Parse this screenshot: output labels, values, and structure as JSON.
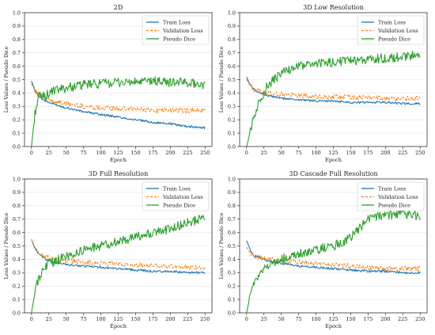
{
  "figure": {
    "legend_labels": [
      "Train Loss",
      "Validation Loss",
      "Pseudo Dice"
    ],
    "colors": {
      "train": "#1f77b4",
      "validation": "#ff7f0e",
      "dice": "#2ca02c",
      "grid": "#e3e3e3",
      "axis": "#333333"
    }
  },
  "chart_data": [
    {
      "type": "line",
      "title": "2D",
      "xlabel": "Epoch",
      "ylabel": "Loss Values / Pseudo Dice",
      "xlim": [
        -10,
        260
      ],
      "ylim": [
        0,
        1.0
      ],
      "xticks": [
        0,
        25,
        50,
        75,
        100,
        125,
        150,
        175,
        200,
        225,
        250
      ],
      "yticks": [
        0.0,
        0.1,
        0.2,
        0.3,
        0.4,
        0.5,
        0.6,
        0.7,
        0.8,
        0.9,
        1.0
      ],
      "grid": true,
      "legend_position": "top-right",
      "series": [
        {
          "name": "Train Loss",
          "style": "solid",
          "x": [
            0,
            5,
            10,
            20,
            30,
            50,
            75,
            100,
            125,
            150,
            175,
            200,
            225,
            250
          ],
          "values": [
            0.49,
            0.42,
            0.38,
            0.34,
            0.32,
            0.29,
            0.26,
            0.24,
            0.22,
            0.2,
            0.18,
            0.17,
            0.15,
            0.14
          ]
        },
        {
          "name": "Validation Loss",
          "style": "dashed",
          "x": [
            0,
            5,
            10,
            20,
            30,
            50,
            75,
            100,
            125,
            150,
            175,
            200,
            225,
            250
          ],
          "values": [
            0.47,
            0.42,
            0.39,
            0.36,
            0.34,
            0.32,
            0.3,
            0.29,
            0.28,
            0.28,
            0.27,
            0.27,
            0.27,
            0.27
          ]
        },
        {
          "name": "Pseudo Dice",
          "style": "solid",
          "x": [
            0,
            5,
            10,
            20,
            30,
            50,
            75,
            100,
            125,
            150,
            175,
            200,
            225,
            250
          ],
          "values": [
            0.0,
            0.25,
            0.37,
            0.38,
            0.41,
            0.44,
            0.46,
            0.47,
            0.48,
            0.48,
            0.49,
            0.48,
            0.48,
            0.46
          ]
        }
      ]
    },
    {
      "type": "line",
      "title": "3D Low Resolution",
      "xlabel": "Epoch",
      "ylabel": "Loss Values / Pseudo Dice",
      "xlim": [
        -10,
        260
      ],
      "ylim": [
        0,
        1.0
      ],
      "xticks": [
        0,
        25,
        50,
        75,
        100,
        125,
        150,
        175,
        200,
        225,
        250
      ],
      "yticks": [
        0.0,
        0.1,
        0.2,
        0.3,
        0.4,
        0.5,
        0.6,
        0.7,
        0.8,
        0.9,
        1.0
      ],
      "grid": true,
      "legend_position": "top-right",
      "series": [
        {
          "name": "Train Loss",
          "style": "solid",
          "x": [
            0,
            5,
            10,
            20,
            30,
            50,
            75,
            100,
            125,
            150,
            175,
            200,
            225,
            250
          ],
          "values": [
            0.52,
            0.46,
            0.43,
            0.4,
            0.38,
            0.36,
            0.35,
            0.34,
            0.34,
            0.33,
            0.33,
            0.33,
            0.32,
            0.32
          ]
        },
        {
          "name": "Validation Loss",
          "style": "dashed",
          "x": [
            0,
            5,
            10,
            20,
            30,
            50,
            75,
            100,
            125,
            150,
            175,
            200,
            225,
            250
          ],
          "values": [
            0.5,
            0.46,
            0.43,
            0.41,
            0.4,
            0.39,
            0.38,
            0.37,
            0.37,
            0.37,
            0.37,
            0.36,
            0.36,
            0.36
          ]
        },
        {
          "name": "Pseudo Dice",
          "style": "solid",
          "x": [
            0,
            5,
            10,
            20,
            30,
            50,
            75,
            100,
            125,
            150,
            175,
            200,
            225,
            250
          ],
          "values": [
            0.0,
            0.1,
            0.22,
            0.36,
            0.45,
            0.55,
            0.6,
            0.62,
            0.63,
            0.64,
            0.65,
            0.66,
            0.67,
            0.69
          ]
        }
      ]
    },
    {
      "type": "line",
      "title": "3D Full Resolution",
      "xlabel": "Epoch",
      "ylabel": "Loss Values / Pseudo Dice",
      "xlim": [
        -10,
        260
      ],
      "ylim": [
        0,
        1.0
      ],
      "xticks": [
        0,
        25,
        50,
        75,
        100,
        125,
        150,
        175,
        200,
        225,
        250
      ],
      "yticks": [
        0.0,
        0.1,
        0.2,
        0.3,
        0.4,
        0.5,
        0.6,
        0.7,
        0.8,
        0.9,
        1.0
      ],
      "grid": true,
      "legend_position": "top-right",
      "series": [
        {
          "name": "Train Loss",
          "style": "solid",
          "x": [
            0,
            5,
            10,
            20,
            30,
            50,
            75,
            100,
            125,
            150,
            175,
            200,
            225,
            250
          ],
          "values": [
            0.55,
            0.48,
            0.44,
            0.4,
            0.38,
            0.36,
            0.35,
            0.34,
            0.33,
            0.32,
            0.31,
            0.31,
            0.3,
            0.3
          ]
        },
        {
          "name": "Validation Loss",
          "style": "dashed",
          "x": [
            0,
            5,
            10,
            20,
            30,
            50,
            75,
            100,
            125,
            150,
            175,
            200,
            225,
            250
          ],
          "values": [
            0.55,
            0.49,
            0.45,
            0.42,
            0.4,
            0.39,
            0.38,
            0.37,
            0.36,
            0.36,
            0.35,
            0.35,
            0.34,
            0.34
          ]
        },
        {
          "name": "Pseudo Dice",
          "style": "solid",
          "x": [
            0,
            5,
            10,
            20,
            30,
            50,
            75,
            100,
            125,
            150,
            175,
            200,
            225,
            250
          ],
          "values": [
            0.0,
            0.15,
            0.25,
            0.35,
            0.38,
            0.42,
            0.47,
            0.5,
            0.53,
            0.57,
            0.6,
            0.63,
            0.67,
            0.71
          ]
        }
      ]
    },
    {
      "type": "line",
      "title": "3D Cascade Full Resolution",
      "xlabel": "Epoch",
      "ylabel": "Loss Values / Pseudo Dice",
      "xlim": [
        -10,
        260
      ],
      "ylim": [
        0,
        1.0
      ],
      "xticks": [
        0,
        25,
        50,
        75,
        100,
        125,
        150,
        175,
        200,
        225,
        250
      ],
      "yticks": [
        0.0,
        0.1,
        0.2,
        0.3,
        0.4,
        0.5,
        0.6,
        0.7,
        0.8,
        0.9,
        1.0
      ],
      "grid": true,
      "legend_position": "top-right",
      "series": [
        {
          "name": "Train Loss",
          "style": "solid",
          "x": [
            0,
            5,
            10,
            20,
            30,
            50,
            75,
            100,
            125,
            150,
            175,
            200,
            225,
            250
          ],
          "values": [
            0.54,
            0.47,
            0.43,
            0.41,
            0.39,
            0.37,
            0.35,
            0.34,
            0.33,
            0.32,
            0.31,
            0.31,
            0.3,
            0.3
          ]
        },
        {
          "name": "Validation Loss",
          "style": "dashed",
          "x": [
            0,
            5,
            10,
            20,
            30,
            50,
            75,
            100,
            125,
            150,
            175,
            200,
            225,
            250
          ],
          "values": [
            0.49,
            0.45,
            0.43,
            0.41,
            0.4,
            0.39,
            0.38,
            0.37,
            0.36,
            0.35,
            0.34,
            0.33,
            0.33,
            0.33
          ]
        },
        {
          "name": "Pseudo Dice",
          "style": "solid",
          "x": [
            0,
            5,
            10,
            20,
            30,
            50,
            75,
            100,
            125,
            150,
            175,
            200,
            225,
            250
          ],
          "values": [
            0.0,
            0.12,
            0.22,
            0.3,
            0.35,
            0.4,
            0.44,
            0.47,
            0.5,
            0.56,
            0.7,
            0.73,
            0.74,
            0.72
          ]
        }
      ]
    }
  ]
}
